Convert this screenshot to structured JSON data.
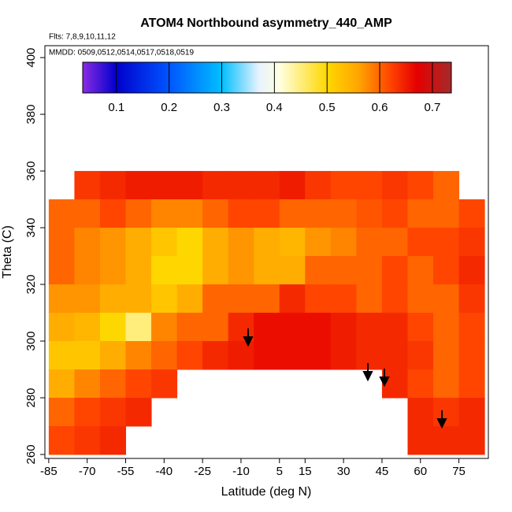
{
  "chart_data": {
    "type": "heatmap",
    "title": "ATOM4 Northbound asymmetry_440_AMP",
    "subtitle": "Flts: 7,8,9,10,11,12",
    "annotation": "MMDD: 0509,0512,0514,0517,0518,0519",
    "xlabel": "Latitude (deg N)",
    "ylabel": "Theta (C)",
    "xlim": [
      -86.5,
      86.5
    ],
    "ylim": [
      258.6,
      404.2
    ],
    "xticks": [
      -85,
      -70,
      -55,
      -40,
      -25,
      -10,
      5,
      15,
      30,
      45,
      60,
      75
    ],
    "yticks": [
      260,
      280,
      300,
      320,
      340,
      360,
      380,
      400
    ],
    "clim": [
      0.036,
      0.736
    ],
    "cticks": [
      0.1,
      0.2,
      0.3,
      0.4,
      0.5,
      0.6,
      0.7
    ],
    "colorscale": [
      [
        0.036,
        "#8a2be2"
      ],
      [
        0.1,
        "#0000cd"
      ],
      [
        0.2,
        "#0055ff"
      ],
      [
        0.3,
        "#00bfff"
      ],
      [
        0.37,
        "#e6f2ff"
      ],
      [
        0.41,
        "#ffffe0"
      ],
      [
        0.5,
        "#ffd700"
      ],
      [
        0.56,
        "#ffa500"
      ],
      [
        0.62,
        "#ff4500"
      ],
      [
        0.67,
        "#e60000"
      ],
      [
        0.736,
        "#a52a2a"
      ]
    ],
    "x": [
      -80,
      -70,
      -60,
      -50,
      -40,
      -30,
      -20,
      -10,
      0,
      10,
      20,
      30,
      40,
      50,
      60,
      70,
      80
    ],
    "y": [
      355,
      345,
      335,
      325,
      315,
      305,
      295,
      285,
      275,
      265
    ],
    "z": [
      [
        null,
        0.63,
        0.64,
        0.65,
        0.65,
        0.65,
        0.64,
        0.64,
        0.64,
        0.65,
        0.63,
        0.62,
        0.62,
        0.63,
        0.62,
        0.6,
        null
      ],
      [
        0.6,
        0.6,
        0.62,
        0.6,
        0.58,
        0.58,
        0.6,
        0.62,
        0.62,
        0.6,
        0.6,
        0.6,
        0.61,
        0.62,
        0.6,
        0.6,
        0.62
      ],
      [
        0.6,
        0.58,
        0.57,
        0.55,
        0.52,
        0.5,
        0.55,
        0.57,
        0.55,
        0.54,
        0.57,
        0.58,
        0.6,
        0.6,
        0.62,
        0.62,
        0.63
      ],
      [
        0.6,
        0.58,
        0.57,
        0.55,
        0.5,
        0.5,
        0.55,
        0.57,
        0.55,
        0.55,
        0.6,
        0.6,
        0.6,
        0.62,
        0.6,
        0.62,
        0.64
      ],
      [
        0.57,
        0.57,
        0.55,
        0.55,
        0.52,
        0.55,
        0.6,
        0.6,
        0.6,
        0.64,
        0.62,
        0.62,
        0.6,
        0.62,
        0.6,
        0.6,
        0.63
      ],
      [
        0.55,
        0.54,
        0.5,
        0.45,
        0.58,
        0.6,
        0.6,
        0.64,
        0.66,
        0.66,
        0.66,
        0.65,
        0.64,
        0.64,
        0.62,
        0.6,
        0.62
      ],
      [
        0.52,
        0.52,
        0.55,
        0.58,
        0.6,
        0.62,
        0.64,
        0.65,
        0.66,
        0.66,
        0.66,
        0.65,
        0.64,
        0.64,
        0.63,
        0.6,
        0.62
      ],
      [
        0.55,
        0.58,
        0.6,
        0.62,
        0.63,
        null,
        null,
        null,
        null,
        null,
        null,
        null,
        null,
        0.64,
        0.62,
        0.6,
        0.62
      ],
      [
        0.6,
        0.62,
        0.63,
        0.64,
        null,
        null,
        null,
        null,
        null,
        null,
        null,
        null,
        null,
        null,
        0.64,
        0.63,
        0.64
      ],
      [
        0.62,
        0.63,
        0.64,
        null,
        null,
        null,
        null,
        null,
        null,
        null,
        null,
        null,
        null,
        null,
        0.64,
        0.64,
        0.64
      ]
    ]
  }
}
